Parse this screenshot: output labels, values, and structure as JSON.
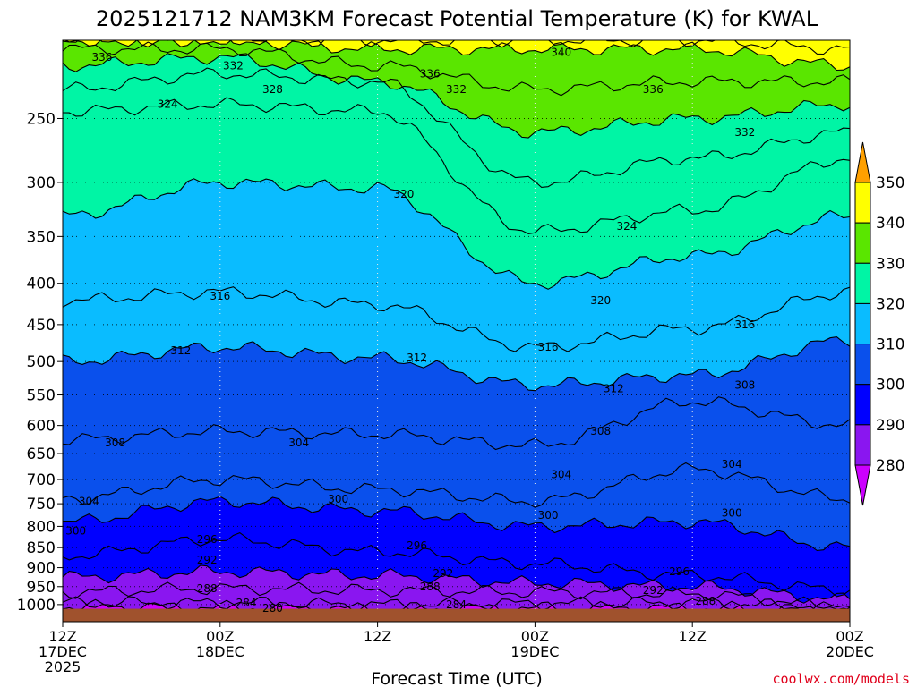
{
  "chart_data": {
    "type": "heatmap",
    "title": "2025121712 NAM3KM Forecast Potential Temperature (K) for KWAL",
    "xlabel": "Forecast Time (UTC)",
    "ylabel": "",
    "y_pressure_range": [
      1050,
      200
    ],
    "y_ticks": [
      "250",
      "300",
      "350",
      "400",
      "450",
      "500",
      "550",
      "600",
      "650",
      "700",
      "750",
      "800",
      "850",
      "900",
      "950",
      "1000"
    ],
    "x_range_hours": [
      0,
      60
    ],
    "x_ticks": [
      {
        "hour": 0,
        "line1": "12Z",
        "line2": "17DEC",
        "line3": "2025"
      },
      {
        "hour": 12,
        "line1": "00Z",
        "line2": "18DEC",
        "line3": ""
      },
      {
        "hour": 24,
        "line1": "12Z",
        "line2": "",
        "line3": ""
      },
      {
        "hour": 36,
        "line1": "00Z",
        "line2": "19DEC",
        "line3": ""
      },
      {
        "hour": 48,
        "line1": "12Z",
        "line2": "",
        "line3": ""
      },
      {
        "hour": 60,
        "line1": "00Z",
        "line2": "20DEC",
        "line3": ""
      }
    ],
    "colorbar": {
      "levels": [
        "280",
        "290",
        "300",
        "310",
        "320",
        "330",
        "340",
        "350"
      ],
      "colors": [
        "#cc00ff",
        "#8a16f0",
        "#0000ff",
        "#0a50ec",
        "#0abcff",
        "#00f5a5",
        "#5ae600",
        "#ffff00",
        "#ffa000"
      ]
    },
    "contour_interval_K": 4,
    "isentrope_pressures": {
      "hours": [
        0,
        12,
        24,
        36,
        48,
        60
      ],
      "theta": [
        {
          "k": 280,
          "p": [
            1005,
            1008,
            1012,
            1010,
            1010,
            1015
          ]
        },
        {
          "k": 284,
          "p": [
            995,
            995,
            1000,
            997,
            995,
            1010
          ]
        },
        {
          "k": 288,
          "p": [
            965,
            955,
            960,
            965,
            970,
            1005
          ]
        },
        {
          "k": 292,
          "p": [
            925,
            910,
            920,
            940,
            950,
            985
          ]
        },
        {
          "k": 296,
          "p": [
            870,
            830,
            860,
            890,
            920,
            960
          ]
        },
        {
          "k": 300,
          "p": [
            790,
            745,
            765,
            800,
            790,
            850
          ]
        },
        {
          "k": 304,
          "p": [
            740,
            700,
            720,
            745,
            680,
            740
          ]
        },
        {
          "k": 308,
          "p": [
            625,
            610,
            615,
            635,
            560,
            600
          ]
        },
        {
          "k": 312,
          "p": [
            500,
            480,
            495,
            535,
            520,
            470
          ]
        },
        {
          "k": 316,
          "p": [
            420,
            410,
            425,
            480,
            455,
            410
          ]
        },
        {
          "k": 320,
          "p": [
            330,
            300,
            305,
            400,
            370,
            330
          ]
        },
        {
          "k": 324,
          "p": [
            245,
            240,
            245,
            345,
            325,
            280
          ]
        },
        {
          "k": 328,
          "p": [
            230,
            220,
            225,
            300,
            280,
            260
          ]
        },
        {
          "k": 332,
          "p": [
            215,
            210,
            225,
            260,
            250,
            240
          ]
        },
        {
          "k": 336,
          "p": [
            205,
            205,
            215,
            230,
            225,
            225
          ]
        },
        {
          "k": 340,
          "p": [
            200,
            200,
            205,
            205,
            205,
            215
          ]
        },
        {
          "k": 344,
          "p": [
            200,
            200,
            200,
            200,
            200,
            205
          ]
        }
      ]
    },
    "contour_labels": [
      {
        "text": "336",
        "hour": 3,
        "p": 210
      },
      {
        "text": "332",
        "hour": 13,
        "p": 215
      },
      {
        "text": "328",
        "hour": 16,
        "p": 230
      },
      {
        "text": "324",
        "hour": 8,
        "p": 240
      },
      {
        "text": "340",
        "hour": 38,
        "p": 207
      },
      {
        "text": "336",
        "hour": 28,
        "p": 220
      },
      {
        "text": "332",
        "hour": 30,
        "p": 230
      },
      {
        "text": "336",
        "hour": 45,
        "p": 230
      },
      {
        "text": "332",
        "hour": 52,
        "p": 260
      },
      {
        "text": "320",
        "hour": 26,
        "p": 310
      },
      {
        "text": "324",
        "hour": 43,
        "p": 340
      },
      {
        "text": "316",
        "hour": 12,
        "p": 415
      },
      {
        "text": "320",
        "hour": 41,
        "p": 420
      },
      {
        "text": "316",
        "hour": 52,
        "p": 450
      },
      {
        "text": "312",
        "hour": 9,
        "p": 485
      },
      {
        "text": "312",
        "hour": 27,
        "p": 495
      },
      {
        "text": "316",
        "hour": 37,
        "p": 480
      },
      {
        "text": "312",
        "hour": 42,
        "p": 540
      },
      {
        "text": "308",
        "hour": 52,
        "p": 535
      },
      {
        "text": "308",
        "hour": 4,
        "p": 630
      },
      {
        "text": "304",
        "hour": 18,
        "p": 630
      },
      {
        "text": "308",
        "hour": 41,
        "p": 610
      },
      {
        "text": "304",
        "hour": 38,
        "p": 690
      },
      {
        "text": "304",
        "hour": 51,
        "p": 670
      },
      {
        "text": "304",
        "hour": 2,
        "p": 745
      },
      {
        "text": "300",
        "hour": 21,
        "p": 740
      },
      {
        "text": "300",
        "hour": 37,
        "p": 775
      },
      {
        "text": "300",
        "hour": 51,
        "p": 770
      },
      {
        "text": "300",
        "hour": 1,
        "p": 810
      },
      {
        "text": "296",
        "hour": 11,
        "p": 830
      },
      {
        "text": "296",
        "hour": 27,
        "p": 845
      },
      {
        "text": "296",
        "hour": 47,
        "p": 910
      },
      {
        "text": "292",
        "hour": 11,
        "p": 880
      },
      {
        "text": "292",
        "hour": 29,
        "p": 915
      },
      {
        "text": "292",
        "hour": 45,
        "p": 960
      },
      {
        "text": "288",
        "hour": 11,
        "p": 955
      },
      {
        "text": "288",
        "hour": 28,
        "p": 950
      },
      {
        "text": "288",
        "hour": 49,
        "p": 990
      },
      {
        "text": "284",
        "hour": 14,
        "p": 995
      },
      {
        "text": "284",
        "hour": 30,
        "p": 1000
      },
      {
        "text": "280",
        "hour": 16,
        "p": 1010
      }
    ],
    "ground_color": "#a0522d"
  },
  "credit": "coolwx.com/models"
}
